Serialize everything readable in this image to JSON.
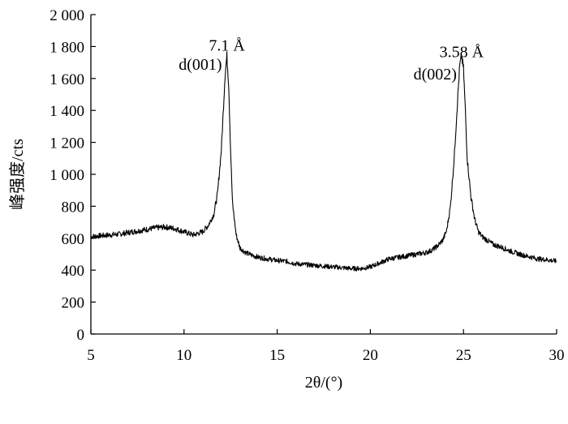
{
  "chart_data": {
    "type": "line",
    "title": "",
    "xlabel": "2θ/(°)",
    "ylabel": "峰强度/cts",
    "xlim": [
      5,
      30
    ],
    "ylim": [
      0,
      2000
    ],
    "x_ticks": [
      5,
      10,
      15,
      20,
      25,
      30
    ],
    "x_tick_labels": [
      "5",
      "10",
      "15",
      "20",
      "25",
      "30"
    ],
    "y_ticks": [
      0,
      200,
      400,
      600,
      800,
      1000,
      1200,
      1400,
      1600,
      1800,
      2000
    ],
    "y_tick_labels": [
      "0",
      "200",
      "400",
      "600",
      "800",
      "1 000",
      "1 200",
      "1 400",
      "1 600",
      "1 800",
      "2 000"
    ],
    "grid": false,
    "legend": "none",
    "line_color": "#000000",
    "annotations": [
      {
        "id": "peak1-spacing",
        "text": "7.1 Å",
        "x": 12.3,
        "y": 1810
      },
      {
        "id": "peak1-index",
        "text": "d(001)",
        "x": 12.3,
        "y": 1690
      },
      {
        "id": "peak2-spacing",
        "text": "3.58 Å",
        "x": 24.9,
        "y": 1770
      },
      {
        "id": "peak2-index",
        "text": "d(002)",
        "x": 24.9,
        "y": 1630
      }
    ],
    "series": [
      {
        "x": [
          5.0,
          5.5,
          6.0,
          6.5,
          7.0,
          7.5,
          8.0,
          8.5,
          9.0,
          9.5,
          10.0,
          10.5,
          11.0,
          11.3,
          11.6,
          11.8,
          12.0,
          12.1,
          12.2,
          12.3,
          12.4,
          12.5,
          12.6,
          12.8,
          13.0,
          13.3,
          13.6,
          14.0,
          14.5,
          15.0,
          15.5,
          16.0,
          16.5,
          17.0,
          17.5,
          18.0,
          18.5,
          19.0,
          19.5,
          20.0,
          20.5,
          21.0,
          21.5,
          22.0,
          22.5,
          23.0,
          23.3,
          23.6,
          23.9,
          24.1,
          24.3,
          24.5,
          24.7,
          24.8,
          24.9,
          25.0,
          25.1,
          25.2,
          25.4,
          25.6,
          25.8,
          26.0,
          26.3,
          26.6,
          27.0,
          27.5,
          28.0,
          28.5,
          29.0,
          29.5,
          30.0
        ],
        "values": [
          610,
          615,
          620,
          625,
          635,
          645,
          655,
          665,
          670,
          660,
          640,
          620,
          640,
          680,
          750,
          880,
          1150,
          1380,
          1620,
          1740,
          1560,
          1150,
          820,
          620,
          540,
          510,
          495,
          480,
          470,
          460,
          455,
          440,
          435,
          430,
          425,
          420,
          415,
          410,
          410,
          420,
          445,
          470,
          480,
          490,
          500,
          510,
          525,
          550,
          590,
          650,
          800,
          1100,
          1500,
          1680,
          1740,
          1660,
          1400,
          1100,
          860,
          720,
          640,
          610,
          585,
          560,
          545,
          520,
          500,
          485,
          470,
          465,
          455
        ]
      }
    ]
  }
}
